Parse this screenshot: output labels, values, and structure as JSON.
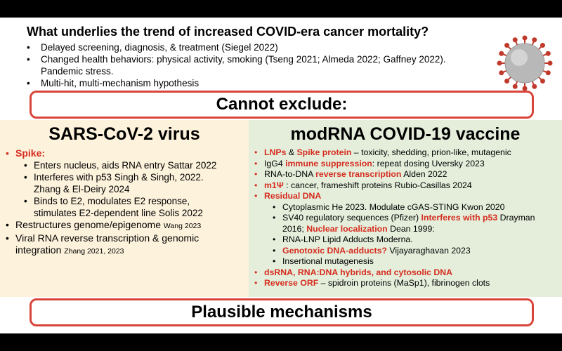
{
  "header": {
    "title": "What underlies the trend of increased COVID-era cancer mortality?",
    "bullets": [
      [
        "Delayed screening, diagnosis, & treatment (Siegel 2022)"
      ],
      [
        "Changed health behaviors: physical activity, smoking (Tseng 2021; Almeda 2022; Gaffney 2022).",
        "Pandemic stress."
      ],
      [
        "Multi-hit, multi-mechanism hypothesis"
      ]
    ]
  },
  "banner_top": "Cannot exclude:",
  "left": {
    "title": "SARS-CoV-2 virus",
    "items": [
      {
        "level": 1,
        "runs": [
          {
            "text": "Spike:",
            "color": "#d62c1f"
          }
        ]
      },
      {
        "level": 2,
        "runs": [
          {
            "text": "Enters nucleus, aids RNA entry Sattar 2022"
          }
        ]
      },
      {
        "level": 2,
        "runs": [
          {
            "text": "Interferes with p53 Singh & Singh, 2022. Zhang & El-Deiry 2024"
          }
        ]
      },
      {
        "level": 2,
        "runs": [
          {
            "text": "Binds to E2, modulates E2 response, stimulates E2-dependent line Solis 2022"
          }
        ]
      },
      {
        "level": 1,
        "runs": [
          {
            "text": "Restructures genome/epigenome "
          },
          {
            "text": "Wang 2023",
            "small": true
          }
        ]
      },
      {
        "level": 1,
        "runs": [
          {
            "text": "Viral RNA reverse transcription & genomic integration "
          },
          {
            "text": "Zhang 2021, 2023",
            "small": true
          }
        ]
      }
    ]
  },
  "right": {
    "title": "modRNA COVID-19 vaccine",
    "items": [
      {
        "level": 1,
        "runs": [
          {
            "text": "LNPs",
            "color": "#d62c1f"
          },
          {
            "text": " & "
          },
          {
            "text": "Spike protein",
            "color": "#d62c1f"
          },
          {
            "text": " – toxicity, shedding, prion-like, mutagenic"
          }
        ]
      },
      {
        "level": 1,
        "runs": [
          {
            "text": "IgG4 "
          },
          {
            "text": "immune suppression",
            "color": "#d62c1f"
          },
          {
            "text": ": repeat dosing Uversky 2023"
          }
        ]
      },
      {
        "level": 1,
        "runs": [
          {
            "text": "RNA-to-DNA "
          },
          {
            "text": "reverse transcription",
            "color": "#d62c1f"
          },
          {
            "text": " Alden 2022"
          }
        ]
      },
      {
        "level": 1,
        "runs": [
          {
            "text": "m1Ψ",
            "color": "#d62c1f"
          },
          {
            "text": " : cancer, frameshift proteins Rubio-Casillas 2024"
          }
        ]
      },
      {
        "level": 1,
        "runs": [
          {
            "text": "Residual DNA",
            "color": "#d62c1f"
          }
        ]
      },
      {
        "level": 2,
        "runs": [
          {
            "text": "Cytoplasmic He  2023. Modulate cGAS-STING Kwon 2020"
          }
        ]
      },
      {
        "level": 2,
        "runs": [
          {
            "text": "SV40 regulatory sequences (Pfizer) "
          },
          {
            "text": "Interferes with p53",
            "color": "#d62c1f"
          },
          {
            "text": " Drayman 2016; "
          },
          {
            "text": "Nuclear localization",
            "color": "#d62c1f"
          },
          {
            "text": " Dean 1999:"
          }
        ]
      },
      {
        "level": 2,
        "runs": [
          {
            "text": "RNA-LNP Lipid Adducts Moderna."
          }
        ]
      },
      {
        "level": 2,
        "runs": [
          {
            "text": "Genotoxic DNA-adducts?",
            "color": "#d62c1f"
          },
          {
            "text": " Vijayaraghavan 2023"
          }
        ]
      },
      {
        "level": 2,
        "runs": [
          {
            "text": "Insertional mutagenesis"
          }
        ]
      },
      {
        "level": 1,
        "runs": [
          {
            "text": "dsRNA, RNA:DNA hybrids, and cytosolic DNA",
            "color": "#d62c1f"
          }
        ]
      },
      {
        "level": 1,
        "runs": [
          {
            "text": "Reverse ORF",
            "color": "#d62c1f"
          },
          {
            "text": " – spidroin proteins (MaSp1), fibrinogen clots"
          }
        ]
      }
    ]
  },
  "banner_bottom": "Plausible mechanisms"
}
